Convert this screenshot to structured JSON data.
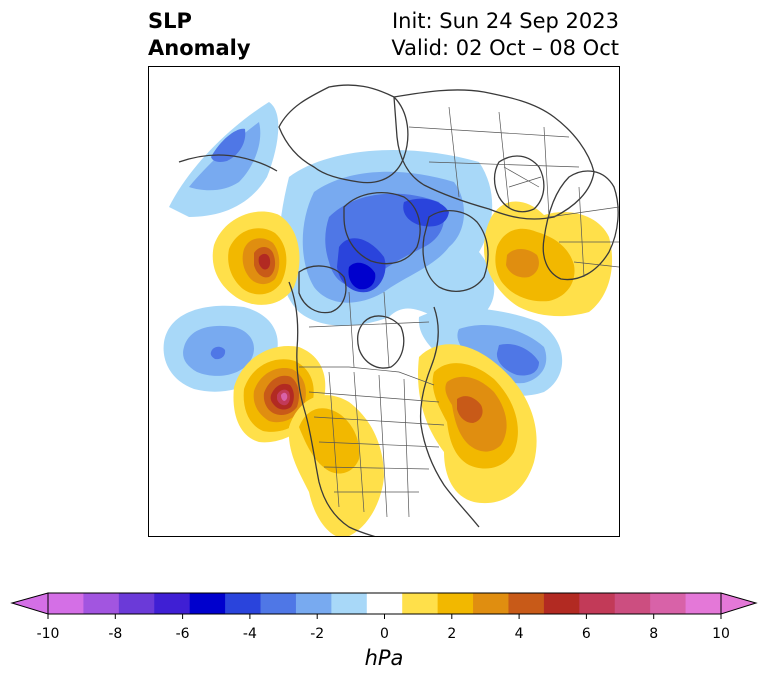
{
  "title": {
    "line1": "SLP",
    "line2": "Anomaly"
  },
  "init": "Init: Sun 24 Sep 2023",
  "valid": "Valid: 02 Oct – 08 Oct",
  "colorbar": {
    "label": "hPa",
    "ticks": [
      "-10",
      "-8",
      "-6",
      "-4",
      "-2",
      "0",
      "2",
      "4",
      "6",
      "8",
      "10"
    ],
    "tick_values": [
      -10,
      -8,
      -6,
      -4,
      -2,
      0,
      2,
      4,
      6,
      8,
      10
    ],
    "colors": [
      "#d46fe6",
      "#a255e0",
      "#6b3ad8",
      "#3f1fd4",
      "#0000cd",
      "#2a44dc",
      "#4f77e6",
      "#78aaf0",
      "#a8d8f8",
      "#ffffff",
      "#ffe04a",
      "#f2b800",
      "#e08e10",
      "#c85a18",
      "#b22a22",
      "#c23a58",
      "#cc4e80",
      "#d862a8",
      "#e478d8"
    ],
    "min_extend_color": "#d46fe6",
    "max_extend_color": "#e478d8"
  },
  "anomalies": [
    {
      "id": "aleutian-low",
      "sign": "negative",
      "peak_hpa": -5,
      "level_colors": [
        "#a8d8f8",
        "#78aaf0",
        "#4f77e6"
      ]
    },
    {
      "id": "arctic-low",
      "sign": "negative",
      "peak_hpa": -7,
      "level_colors": [
        "#a8d8f8",
        "#78aaf0",
        "#4f77e6",
        "#2a44dc",
        "#0000cd"
      ]
    },
    {
      "id": "north-pacific-low",
      "sign": "negative",
      "peak_hpa": -4,
      "level_colors": [
        "#a8d8f8",
        "#78aaf0",
        "#4f77e6"
      ]
    },
    {
      "id": "north-atlantic-low",
      "sign": "negative",
      "peak_hpa": -5,
      "level_colors": [
        "#a8d8f8",
        "#78aaf0",
        "#4f77e6"
      ]
    },
    {
      "id": "siberian-high",
      "sign": "positive",
      "peak_hpa": 5,
      "level_colors": [
        "#ffe04a",
        "#f2b800",
        "#e08e10"
      ]
    },
    {
      "id": "bering-high",
      "sign": "positive",
      "peak_hpa": 6,
      "level_colors": [
        "#ffe04a",
        "#f2b800",
        "#e08e10",
        "#c85a18",
        "#b22a22"
      ]
    },
    {
      "id": "gulf-of-alaska-high",
      "sign": "positive",
      "peak_hpa": 9,
      "level_colors": [
        "#ffe04a",
        "#f2b800",
        "#e08e10",
        "#c85a18",
        "#b22a22",
        "#c23a58",
        "#d862a8"
      ]
    },
    {
      "id": "eastern-north-america-high",
      "sign": "positive",
      "peak_hpa": 5,
      "level_colors": [
        "#ffe04a",
        "#f2b800",
        "#e08e10",
        "#c85a18"
      ]
    },
    {
      "id": "western-us-high",
      "sign": "positive",
      "peak_hpa": 3,
      "level_colors": [
        "#ffe04a",
        "#f2b800"
      ]
    }
  ]
}
